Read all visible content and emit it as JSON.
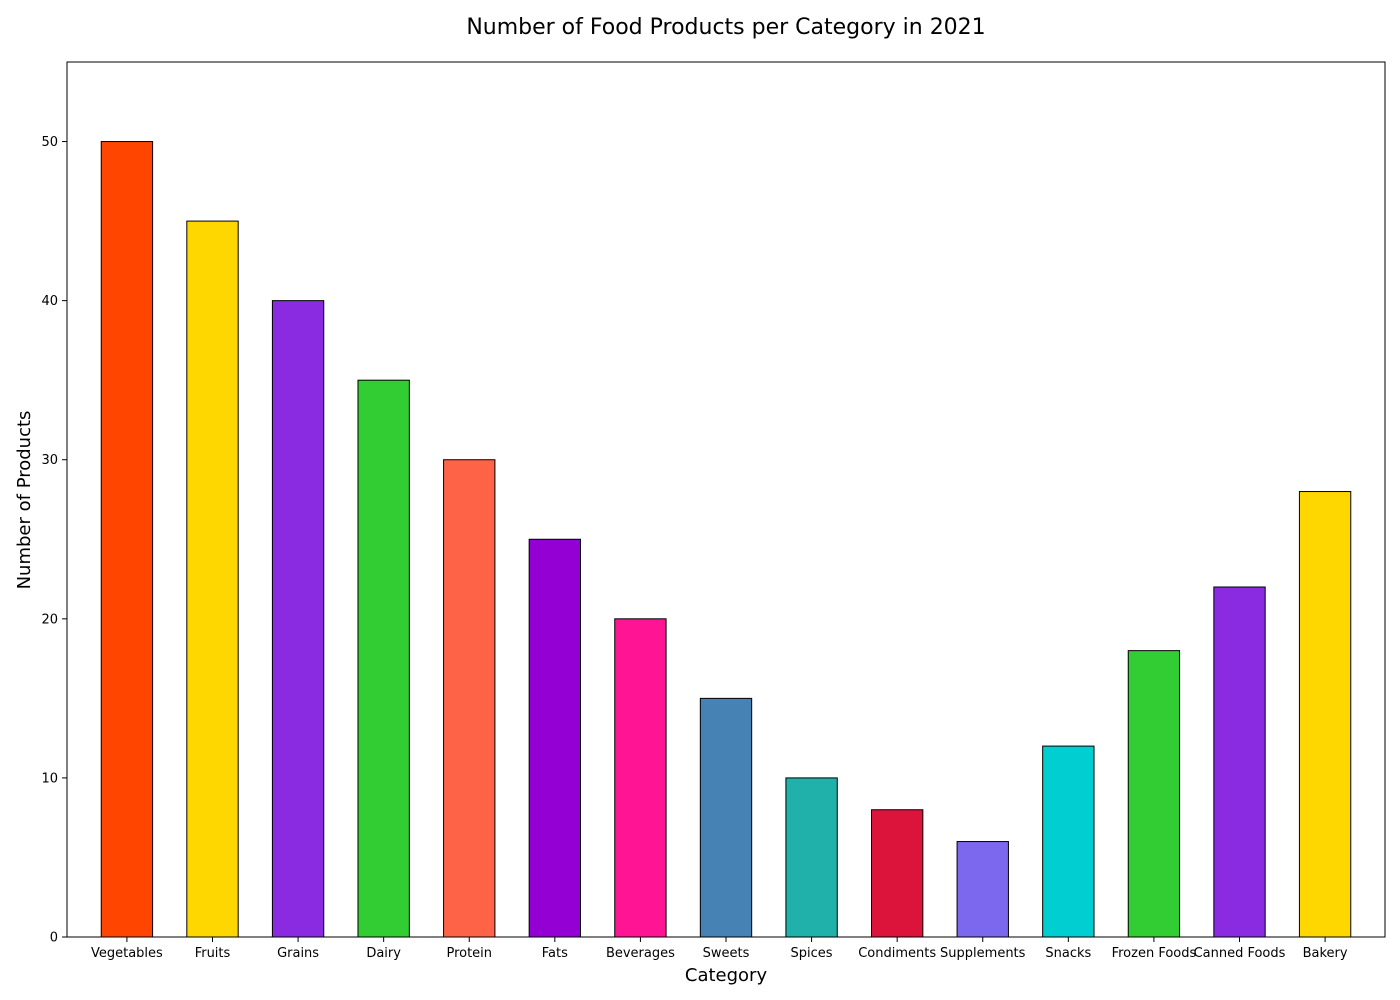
{
  "chart_data": {
    "type": "bar",
    "title": "Number of Food Products per Category in 2021",
    "xlabel": "Category",
    "ylabel": "Number of Products",
    "categories": [
      "Vegetables",
      "Fruits",
      "Grains",
      "Dairy",
      "Protein",
      "Fats",
      "Beverages",
      "Sweets",
      "Spices",
      "Condiments",
      "Supplements",
      "Snacks",
      "Frozen Foods",
      "Canned Foods",
      "Bakery"
    ],
    "values": [
      50,
      45,
      40,
      35,
      30,
      25,
      20,
      15,
      10,
      8,
      6,
      12,
      18,
      22,
      28
    ],
    "colors": [
      "#FF4500",
      "#FFD700",
      "#8A2BE2",
      "#32CD32",
      "#FF6347",
      "#9400D3",
      "#FF1493",
      "#4682B4",
      "#20B2AA",
      "#DC143C",
      "#7B68EE",
      "#00CED1",
      "#32CD32",
      "#8A2BE2",
      "#FFD700"
    ],
    "ylim": [
      0,
      55
    ],
    "yticks": [
      0,
      10,
      20,
      30,
      40,
      50
    ],
    "grid": false,
    "legend": "none"
  }
}
